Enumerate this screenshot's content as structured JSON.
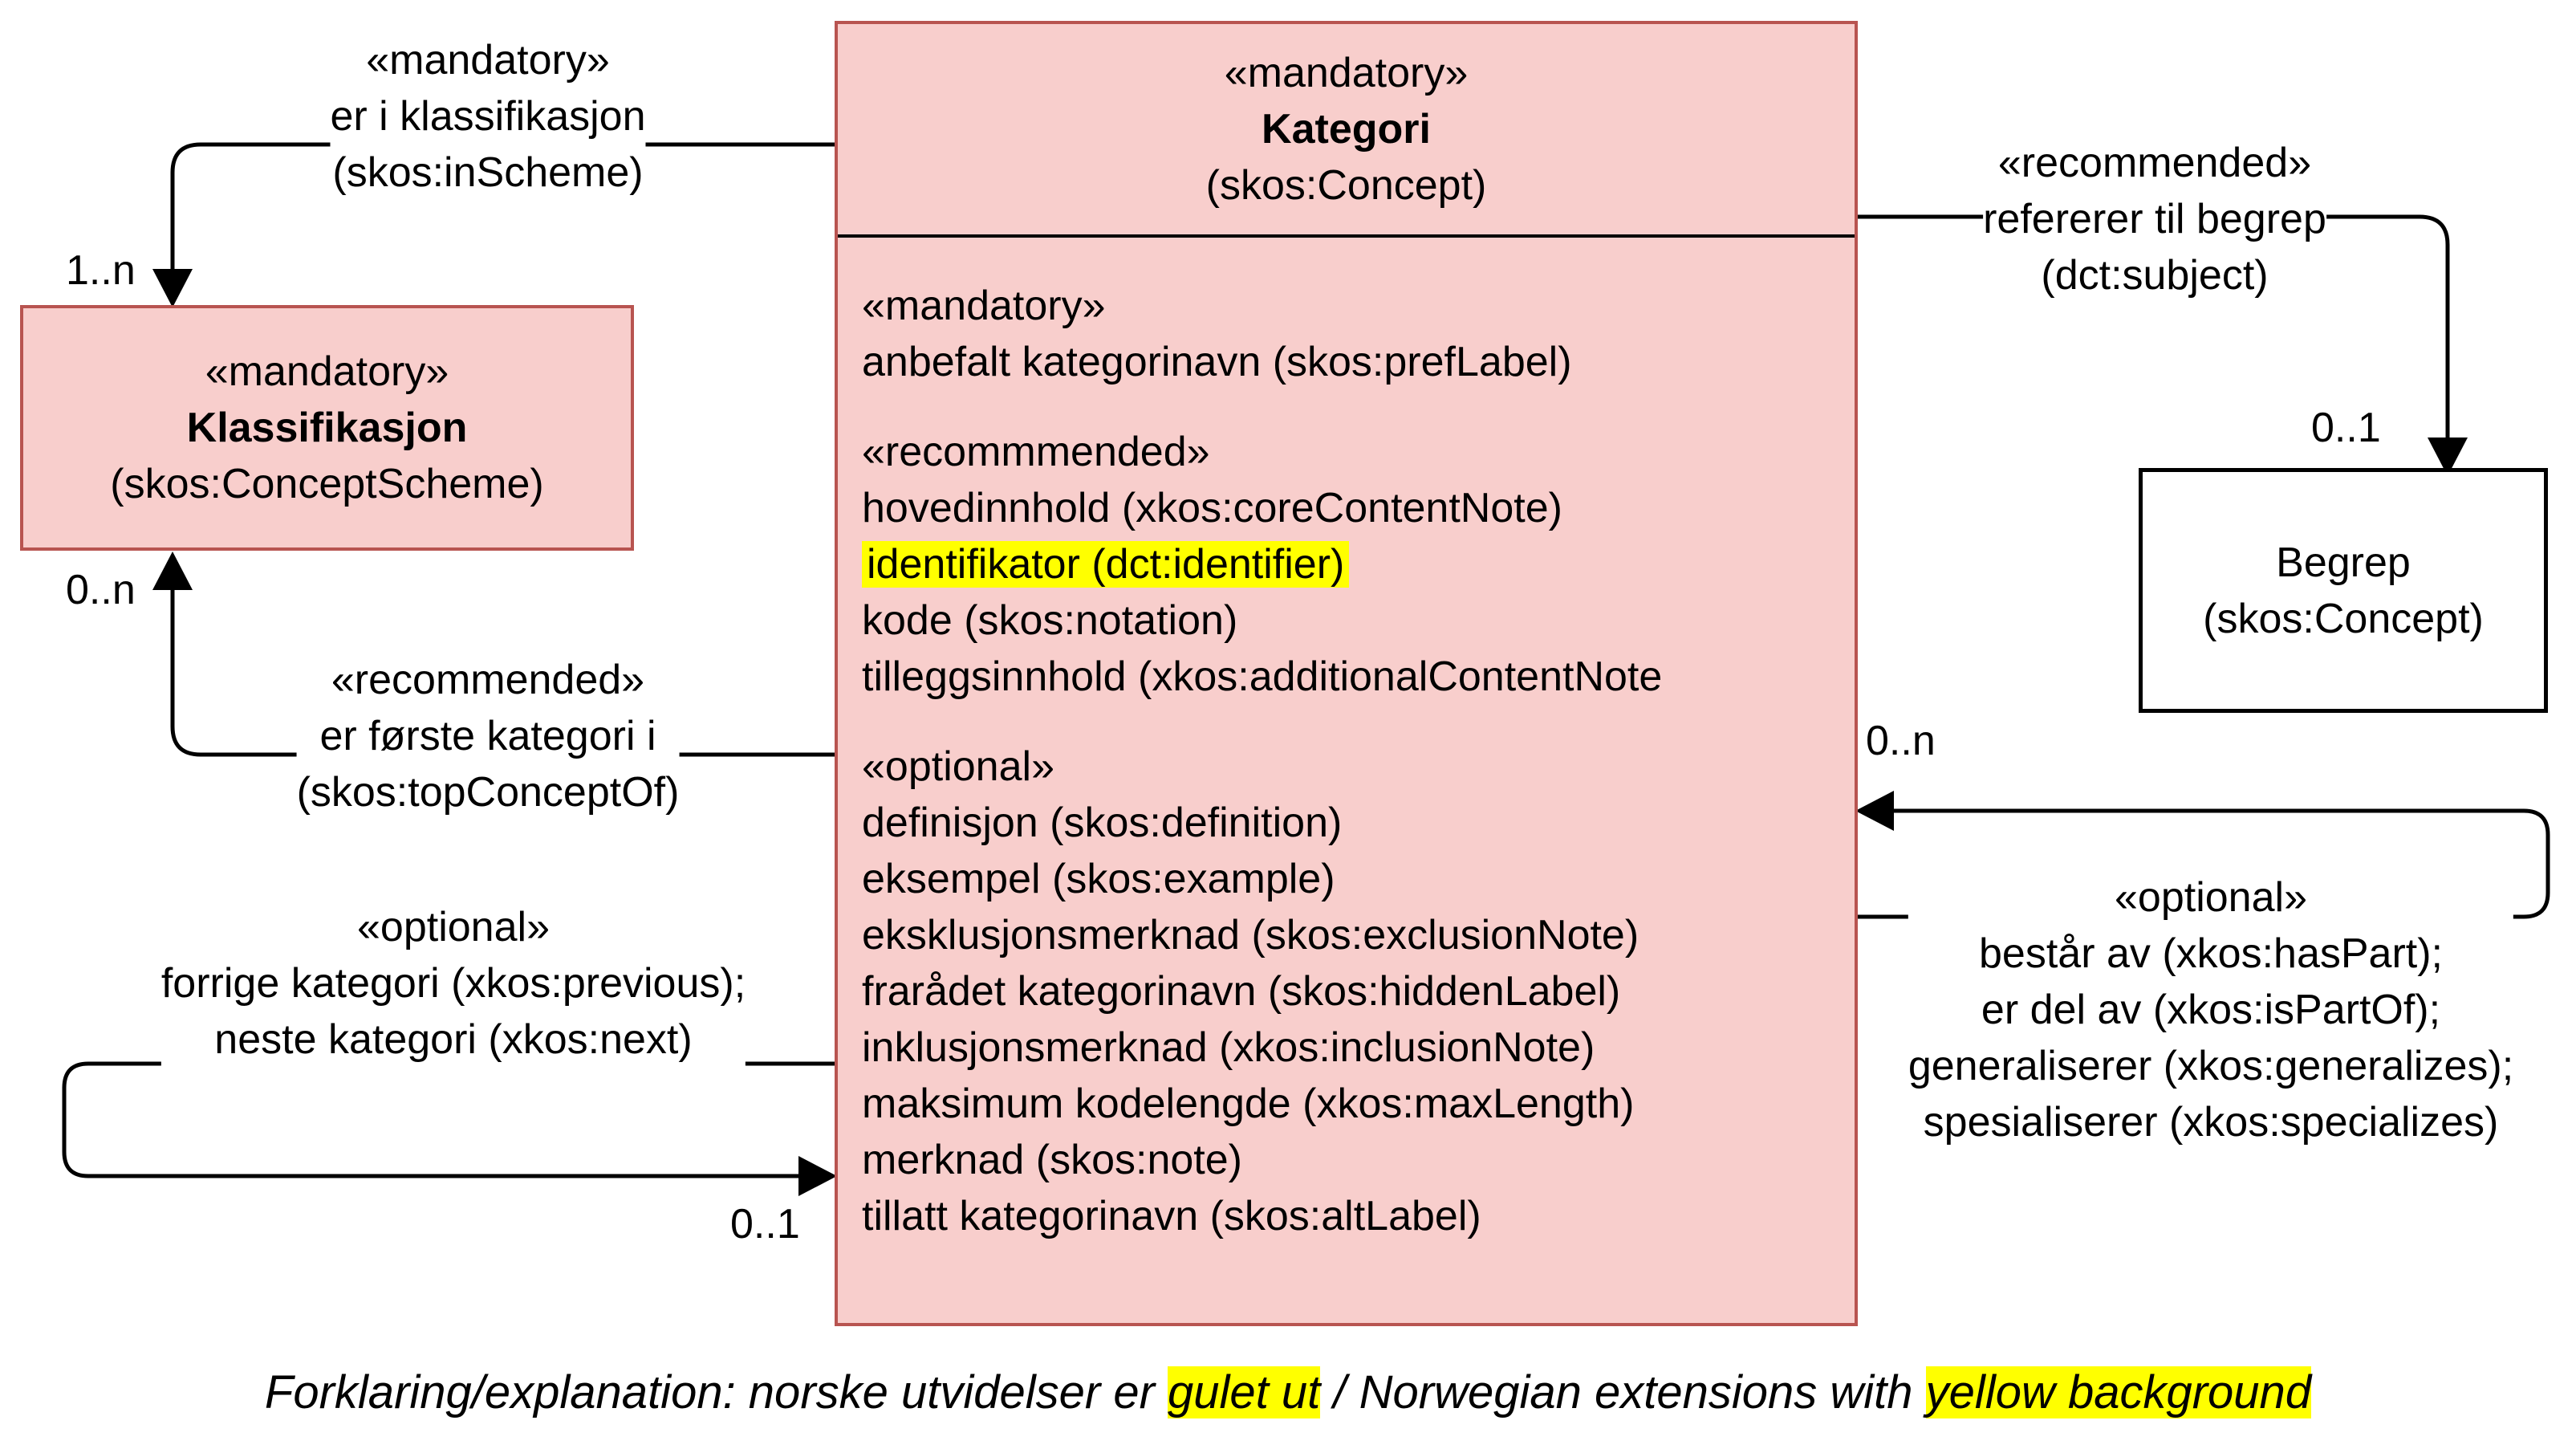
{
  "kategori": {
    "stereotype": "«mandatory»",
    "name": "Kategori",
    "uri": "(skos:Concept)",
    "groups": [
      {
        "stereotype": "«mandatory»",
        "items": [
          {
            "text": "anbefalt kategorinavn (skos:prefLabel)",
            "highlight": false
          }
        ]
      },
      {
        "stereotype": "«recommmended»",
        "items": [
          {
            "text": "hovedinnhold (xkos:coreContentNote)",
            "highlight": false
          },
          {
            "text": "identifikator (dct:identifier)",
            "highlight": true
          },
          {
            "text": "kode (skos:notation)",
            "highlight": false
          },
          {
            "text": "tilleggsinnhold (xkos:additionalContentNote",
            "highlight": false
          }
        ]
      },
      {
        "stereotype": "«optional»",
        "items": [
          {
            "text": "definisjon (skos:definition)",
            "highlight": false
          },
          {
            "text": "eksempel (skos:example)",
            "highlight": false
          },
          {
            "text": "eksklusjonsmerknad (skos:exclusionNote)",
            "highlight": false
          },
          {
            "text": "frarådet kategorinavn (skos:hiddenLabel)",
            "highlight": false
          },
          {
            "text": "inklusjonsmerknad (xkos:inclusionNote)",
            "highlight": false
          },
          {
            "text": "maksimum kodelengde (xkos:maxLength)",
            "highlight": false
          },
          {
            "text": "merknad (skos:note)",
            "highlight": false
          },
          {
            "text": "tillatt kategorinavn (skos:altLabel)",
            "highlight": false
          }
        ]
      }
    ]
  },
  "klassifikasjon": {
    "stereotype": "«mandatory»",
    "name": "Klassifikasjon",
    "uri": "(skos:ConceptScheme)"
  },
  "begrep": {
    "name": "Begrep",
    "uri": "(skos:Concept)"
  },
  "edges": {
    "inScheme": {
      "stereotype": "«mandatory»",
      "line1": "er i klassifikasjon",
      "line2": "(skos:inScheme)",
      "multiplicity": "1..n"
    },
    "topConceptOf": {
      "stereotype": "«recommended»",
      "line1": "er første kategori i",
      "line2": "(skos:topConceptOf)",
      "multiplicity": "0..n"
    },
    "previousNext": {
      "stereotype": "«optional»",
      "line1": "forrige kategori (xkos:previous);",
      "line2": "neste kategori (xkos:next)",
      "multiplicity": "0..1"
    },
    "subject": {
      "stereotype": "«recommended»",
      "line1": "refererer til begrep",
      "line2": "(dct:subject)",
      "multiplicity": "0..1"
    },
    "hasPart": {
      "stereotype": "«optional»",
      "line1": "består av (xkos:hasPart);",
      "line2": "er del av (xkos:isPartOf);",
      "line3": "generaliserer (xkos:generalizes);",
      "line4": "spesialiserer (xkos:specializes)",
      "multiplicity": "0..n"
    }
  },
  "caption": {
    "part1": "Forklaring/explanation: norske utvidelser er ",
    "part2": "gulet ut",
    "part3": " / Norwegian extensions with ",
    "part4": "yellow background"
  },
  "colors": {
    "class_fill": "#f8cecc",
    "class_border": "#b85450",
    "highlight": "#ffff00"
  }
}
